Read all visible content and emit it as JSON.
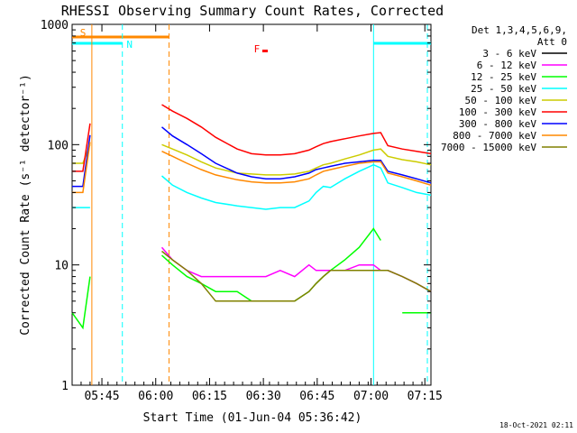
{
  "chart_data": {
    "type": "line",
    "title": "RHESSI Observing Summary Count Rates, Corrected",
    "xlabel": "Start Time (01-Jun-04 05:36:42)",
    "ylabel": "Corrected Count Rate (s⁻¹ detector⁻¹)",
    "y_scale": "log",
    "ylim": [
      1,
      1000
    ],
    "xlim_minutes": [
      0,
      100
    ],
    "x_ticks": [
      {
        "t": 8.3,
        "label": "05:45"
      },
      {
        "t": 23.3,
        "label": "06:00"
      },
      {
        "t": 38.3,
        "label": "06:15"
      },
      {
        "t": 53.3,
        "label": "06:30"
      },
      {
        "t": 68.3,
        "label": "06:45"
      },
      {
        "t": 83.3,
        "label": "07:00"
      },
      {
        "t": 98.3,
        "label": "07:15"
      }
    ],
    "y_ticks": [
      {
        "v": 1,
        "label": "1"
      },
      {
        "v": 10,
        "label": "10"
      },
      {
        "v": 100,
        "label": "100"
      },
      {
        "v": 1000,
        "label": "1000"
      }
    ],
    "legend": {
      "header": [
        "Det 1,3,4,5,6,9,",
        "Att 0"
      ],
      "position": "top-right"
    },
    "series": [
      {
        "name": "3 - 6 keV",
        "color": "#000000",
        "x": [
          0,
          3,
          5,
          22,
          25,
          28,
          32,
          36,
          40,
          46,
          50,
          54,
          58,
          62,
          66,
          68,
          70,
          72,
          76,
          80,
          84,
          86,
          88,
          92,
          96,
          100
        ],
        "y": [
          null,
          null,
          null,
          null,
          null,
          null,
          null,
          null,
          null,
          null,
          null,
          null,
          null,
          null,
          null,
          null,
          null,
          null,
          null,
          null,
          null,
          null,
          null,
          null,
          null,
          null
        ]
      },
      {
        "name": "6 - 12 keV",
        "color": "#ff00ff",
        "x": [
          0,
          3,
          5,
          22,
          25,
          28,
          32,
          36,
          40,
          46,
          50,
          54,
          58,
          62,
          66,
          68,
          70,
          72,
          76,
          80,
          84,
          86,
          88,
          92,
          96,
          100
        ],
        "y": [
          null,
          null,
          null,
          null,
          14,
          11,
          9,
          8,
          8,
          8,
          8,
          8,
          9,
          8,
          10,
          9,
          9,
          9,
          9,
          10,
          10,
          9,
          9,
          8,
          7,
          6
        ]
      },
      {
        "name": "12 - 25 keV",
        "color": "#00ff00",
        "x": [
          0,
          3,
          5,
          22,
          25,
          28,
          32,
          36,
          40,
          46,
          50,
          54,
          58,
          62,
          66,
          68,
          70,
          72,
          76,
          80,
          84,
          86,
          88,
          92,
          96,
          100
        ],
        "y": [
          4,
          3,
          8,
          null,
          12,
          10,
          8,
          7,
          6,
          6,
          5,
          5,
          5,
          5,
          6,
          7,
          8,
          9,
          11,
          14,
          20,
          16,
          null,
          4,
          4,
          4
        ]
      },
      {
        "name": "25 - 50 keV",
        "color": "#00ffff",
        "x": [
          0,
          3,
          5,
          22,
          25,
          28,
          32,
          36,
          40,
          46,
          50,
          54,
          58,
          62,
          66,
          68,
          70,
          72,
          76,
          80,
          84,
          86,
          88,
          92,
          96,
          100
        ],
        "y": [
          30,
          30,
          30,
          null,
          55,
          46,
          40,
          36,
          33,
          31,
          30,
          29,
          30,
          30,
          34,
          40,
          45,
          44,
          52,
          60,
          68,
          64,
          48,
          44,
          40,
          38
        ]
      },
      {
        "name": "50 - 100 keV",
        "color": "#cccc00",
        "x": [
          0,
          3,
          5,
          22,
          25,
          28,
          32,
          36,
          40,
          46,
          50,
          54,
          58,
          62,
          66,
          68,
          70,
          72,
          76,
          80,
          84,
          86,
          88,
          92,
          96,
          100
        ],
        "y": [
          70,
          70,
          100,
          null,
          100,
          92,
          82,
          72,
          64,
          58,
          57,
          56,
          56,
          57,
          60,
          64,
          68,
          70,
          76,
          82,
          90,
          92,
          80,
          75,
          72,
          68
        ]
      },
      {
        "name": "100 - 300 keV",
        "color": "#ff0000",
        "x": [
          0,
          3,
          5,
          22,
          25,
          28,
          32,
          36,
          40,
          46,
          50,
          54,
          58,
          62,
          66,
          68,
          70,
          72,
          76,
          80,
          84,
          86,
          88,
          92,
          96,
          100
        ],
        "y": [
          60,
          60,
          150,
          null,
          215,
          190,
          165,
          140,
          115,
          92,
          84,
          82,
          82,
          84,
          90,
          96,
          102,
          106,
          112,
          118,
          124,
          126,
          98,
          92,
          88,
          84
        ]
      },
      {
        "name": "300 - 800 keV",
        "color": "#0000ff",
        "x": [
          0,
          3,
          5,
          22,
          25,
          28,
          32,
          36,
          40,
          46,
          50,
          54,
          58,
          62,
          66,
          68,
          70,
          72,
          76,
          80,
          84,
          86,
          88,
          92,
          96,
          100
        ],
        "y": [
          45,
          45,
          120,
          null,
          140,
          118,
          100,
          84,
          70,
          58,
          54,
          52,
          52,
          54,
          58,
          62,
          64,
          66,
          70,
          72,
          74,
          74,
          60,
          56,
          52,
          48
        ]
      },
      {
        "name": "800 - 7000 keV",
        "color": "#ff8800",
        "x": [
          0,
          3,
          5,
          22,
          25,
          28,
          32,
          36,
          40,
          46,
          50,
          54,
          58,
          62,
          66,
          68,
          70,
          72,
          76,
          80,
          84,
          86,
          88,
          92,
          96,
          100
        ],
        "y": [
          40,
          40,
          105,
          null,
          88,
          80,
          70,
          62,
          56,
          51,
          49,
          48,
          48,
          49,
          52,
          56,
          60,
          62,
          66,
          70,
          72,
          72,
          58,
          54,
          50,
          46
        ]
      },
      {
        "name": "7000 - 15000 keV",
        "color": "#808000",
        "x": [
          0,
          3,
          5,
          22,
          25,
          28,
          32,
          36,
          40,
          46,
          50,
          54,
          58,
          62,
          66,
          68,
          70,
          72,
          76,
          80,
          84,
          86,
          88,
          92,
          96,
          100
        ],
        "y": [
          null,
          null,
          null,
          null,
          13,
          11,
          9,
          7,
          5,
          5,
          5,
          5,
          5,
          5,
          6,
          7,
          8,
          9,
          9,
          9,
          9,
          9,
          9,
          8,
          7,
          6
        ]
      }
    ],
    "flag_bars": [
      {
        "label": "S",
        "color": "#ff8800",
        "x_start": 0,
        "x_end": 27
      },
      {
        "label": "N",
        "color": "#00ffff",
        "x_start": 0,
        "x_end": 14
      },
      {
        "label": "F",
        "color": "#ff0000",
        "x_start": 52,
        "x_end": 55
      },
      {
        "label": "",
        "color": "#00ffff",
        "x_start": 84,
        "x_end": 100
      }
    ],
    "vlines": [
      {
        "x": 5.5,
        "color": "#ff8800",
        "style": "solid"
      },
      {
        "x": 14,
        "color": "#00ffff",
        "style": "dashed"
      },
      {
        "x": 27,
        "color": "#ff8800",
        "style": "dashed"
      },
      {
        "x": 84,
        "color": "#00ffff",
        "style": "solid"
      },
      {
        "x": 99,
        "color": "#00ffff",
        "style": "dashed"
      }
    ],
    "footer_stamp": "18-Oct-2021 02:11"
  }
}
